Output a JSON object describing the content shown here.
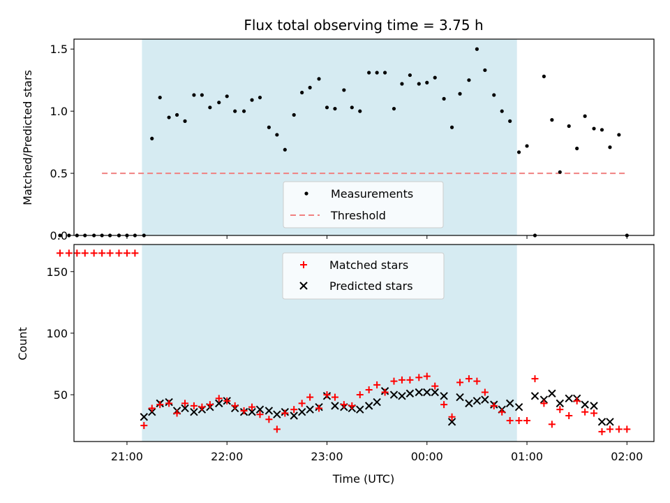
{
  "chart_data": {
    "title": "Flux total observing time = 3.75 h",
    "xlabel": "Time (UTC)",
    "x_unit": "hours UTC (values > 24 = after midnight, next day)",
    "xlim": [
      20.47,
      26.27
    ],
    "xticks": [
      21,
      22,
      23,
      24,
      25,
      26
    ],
    "xtick_labels": [
      "21:00",
      "22:00",
      "23:00",
      "00:00",
      "01:00",
      "02:00"
    ],
    "shaded_span": [
      21.15,
      24.9
    ],
    "shade_color": "#add8e6",
    "panels": [
      {
        "type": "scatter",
        "ylabel": "Matched/Predicted stars",
        "ylim": [
          0,
          1.58
        ],
        "yticks": [
          0.0,
          0.5,
          1.0,
          1.5
        ],
        "ytick_labels": [
          "0.0",
          "0.5",
          "1.0",
          "1.5"
        ],
        "legend": {
          "position": "lower center",
          "entries": [
            "Measurements",
            "Threshold"
          ]
        },
        "threshold": {
          "name": "Threshold",
          "y": 0.5,
          "x_range": [
            20.75,
            26.0
          ],
          "color": "#f08080"
        },
        "series": [
          {
            "name": "Measurements",
            "color": "#000000",
            "marker": "dot",
            "x": [
              20.75,
              20.83,
              20.92,
              21.0,
              21.08,
              21.17,
              21.25,
              21.33,
              21.42,
              21.5,
              21.58,
              21.67,
              21.75,
              21.83,
              21.92,
              22.0,
              22.08,
              22.17,
              22.25,
              22.33,
              22.42,
              22.5,
              22.58,
              22.67,
              22.75,
              22.83,
              22.92,
              23.0,
              23.08,
              23.17,
              23.25,
              23.33,
              23.42,
              23.5,
              23.58,
              23.67,
              23.75,
              23.83,
              23.92,
              24.0,
              24.08,
              24.17,
              24.25,
              24.33,
              24.42,
              24.5,
              24.58,
              24.67,
              24.75,
              24.83,
              24.92,
              25.0,
              25.08,
              25.17,
              25.25,
              25.33,
              25.42,
              25.5,
              25.58,
              25.67,
              25.75,
              25.83,
              25.92,
              26.0,
              20.67,
              20.58,
              20.5,
              20.42,
              20.33,
              20.92
            ],
            "y": [
              0,
              0,
              0,
              0,
              0,
              0,
              0.78,
              1.11,
              0.95,
              0.97,
              0.92,
              1.13,
              1.13,
              1.03,
              1.07,
              1.12,
              1.0,
              1.0,
              1.09,
              1.11,
              0.87,
              0.81,
              0.69,
              0.97,
              1.15,
              1.19,
              1.26,
              1.03,
              1.02,
              1.17,
              1.03,
              1.0,
              1.31,
              1.31,
              1.31,
              1.02,
              1.22,
              1.29,
              1.22,
              1.23,
              1.27,
              1.1,
              0.87,
              1.14,
              1.25,
              1.5,
              1.33,
              1.13,
              1.0,
              0.92,
              0.67,
              0.72,
              0,
              1.28,
              0.93,
              0.51,
              0.88,
              0.7,
              0.96,
              0.86,
              0.85,
              0.71,
              0.81,
              0,
              0,
              0,
              0,
              0,
              0,
              0
            ]
          }
        ]
      },
      {
        "type": "scatter",
        "ylabel": "Count",
        "ylim": [
          12,
          172
        ],
        "yticks": [
          50,
          100,
          150
        ],
        "ytick_labels": [
          "50",
          "100",
          "150"
        ],
        "legend": {
          "position": "upper center",
          "entries": [
            "Matched stars",
            "Predicted stars"
          ]
        },
        "series": [
          {
            "name": "Matched stars",
            "color": "#ff0000",
            "marker": "plus",
            "x": [
              20.33,
              20.42,
              20.5,
              20.58,
              20.67,
              20.75,
              20.83,
              20.92,
              21.0,
              21.08,
              21.17,
              21.25,
              21.33,
              21.42,
              21.5,
              21.58,
              21.67,
              21.75,
              21.83,
              21.92,
              22.0,
              22.08,
              22.17,
              22.25,
              22.33,
              22.42,
              22.5,
              22.58,
              22.67,
              22.75,
              22.83,
              22.92,
              23.0,
              23.08,
              23.17,
              23.25,
              23.33,
              23.42,
              23.5,
              23.58,
              23.67,
              23.75,
              23.83,
              23.92,
              24.0,
              24.08,
              24.17,
              24.25,
              24.33,
              24.42,
              24.5,
              24.58,
              24.67,
              24.75,
              24.83,
              24.92,
              25.0,
              25.08,
              25.17,
              25.25,
              25.33,
              25.42,
              25.5,
              25.58,
              25.67,
              25.75,
              25.83,
              25.92,
              26.0
            ],
            "y": [
              165,
              165,
              165,
              165,
              165,
              165,
              165,
              165,
              165,
              165,
              25,
              39,
              42,
              43,
              35,
              43,
              41,
              40,
              42,
              47,
              45,
              41,
              37,
              40,
              34,
              30,
              22,
              35,
              38,
              43,
              48,
              39,
              50,
              48,
              42,
              41,
              50,
              54,
              58,
              52,
              61,
              62,
              62,
              64,
              65,
              57,
              42,
              32,
              60,
              63,
              61,
              52,
              41,
              36,
              29,
              29,
              29,
              63,
              43,
              26,
              38,
              33,
              45,
              36,
              35,
              20,
              22,
              22,
              22
            ]
          },
          {
            "name": "Predicted stars",
            "color": "#000000",
            "marker": "x",
            "x": [
              21.17,
              21.25,
              21.33,
              21.42,
              21.5,
              21.58,
              21.67,
              21.75,
              21.83,
              21.92,
              22.0,
              22.08,
              22.17,
              22.25,
              22.33,
              22.42,
              22.5,
              22.58,
              22.67,
              22.75,
              22.83,
              22.92,
              23.0,
              23.08,
              23.17,
              23.25,
              23.33,
              23.42,
              23.5,
              23.58,
              23.67,
              23.75,
              23.83,
              23.92,
              24.0,
              24.08,
              24.17,
              24.25,
              24.33,
              24.42,
              24.5,
              24.58,
              24.67,
              24.75,
              24.83,
              24.92,
              25.08,
              25.17,
              25.25,
              25.33,
              25.42,
              25.5,
              25.58,
              25.67,
              25.75,
              25.83
            ],
            "y": [
              32,
              36,
              43,
              44,
              37,
              39,
              36,
              38,
              40,
              43,
              45,
              39,
              36,
              36,
              38,
              37,
              34,
              36,
              33,
              36,
              38,
              40,
              49,
              41,
              40,
              39,
              38,
              41,
              44,
              53,
              50,
              49,
              51,
              52,
              52,
              52,
              49,
              28,
              48,
              43,
              45,
              46,
              42,
              38,
              43,
              40,
              49,
              46,
              51,
              43,
              47,
              47,
              42,
              41,
              28,
              28
            ]
          }
        ]
      }
    ]
  }
}
